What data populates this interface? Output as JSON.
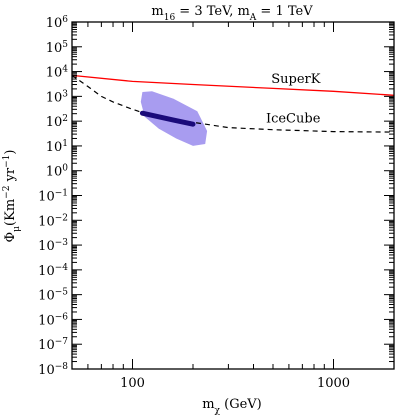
{
  "chart_data": {
    "type": "line",
    "title_parts": [
      "m",
      "16",
      " = 3 TeV,  m",
      "A",
      " = 1 TeV"
    ],
    "xlabel_parts": [
      "m",
      "χ",
      " (GeV)"
    ],
    "ylabel_parts": [
      "Φ",
      "μ",
      "(Km",
      "−2",
      " yr",
      "−1",
      ")"
    ],
    "xscale": "log",
    "yscale": "log",
    "xlim": [
      50,
      2000
    ],
    "ylim": [
      1e-08,
      1000000.0
    ],
    "x_tick_labels": [
      {
        "value": 100,
        "label": "100"
      },
      {
        "value": 1000,
        "label": "1000"
      }
    ],
    "y_tick_labels": [
      {
        "value": 1000000.0,
        "base": "10",
        "exp": "6"
      },
      {
        "value": 100000.0,
        "base": "10",
        "exp": "5"
      },
      {
        "value": 10000.0,
        "base": "10",
        "exp": "4"
      },
      {
        "value": 1000.0,
        "base": "10",
        "exp": "3"
      },
      {
        "value": 100.0,
        "base": "10",
        "exp": "2"
      },
      {
        "value": 10.0,
        "base": "10",
        "exp": "1"
      },
      {
        "value": 1.0,
        "base": "10",
        "exp": "0"
      },
      {
        "value": 0.1,
        "base": "10",
        "exp": "−1"
      },
      {
        "value": 0.01,
        "base": "10",
        "exp": "−2"
      },
      {
        "value": 0.001,
        "base": "10",
        "exp": "−3"
      },
      {
        "value": 0.0001,
        "base": "10",
        "exp": "−4"
      },
      {
        "value": 1e-05,
        "base": "10",
        "exp": "−5"
      },
      {
        "value": 1e-06,
        "base": "10",
        "exp": "−6"
      },
      {
        "value": 1e-07,
        "base": "10",
        "exp": "−7"
      },
      {
        "value": 1e-08,
        "base": "10",
        "exp": "−8"
      }
    ],
    "series": [
      {
        "name": "SuperK",
        "style": "solid",
        "color": "#ff0000",
        "x": [
          50,
          100,
          200,
          500,
          1000,
          2000
        ],
        "y": [
          7000,
          4000,
          3000,
          2100,
          1600,
          1100
        ]
      },
      {
        "name": "IceCube",
        "style": "dashed",
        "color": "#000000",
        "x": [
          50,
          60,
          70,
          80,
          100,
          130,
          200,
          300,
          500,
          1000,
          2000
        ],
        "y": [
          7000,
          2500,
          1000,
          600,
          300,
          150,
          90,
          55,
          45,
          38,
          36
        ]
      },
      {
        "style": "thick-solid",
        "color": "#1a0a7a",
        "x": [
          112,
          130,
          160,
          200
        ],
        "y": [
          210,
          160,
          110,
          75
        ]
      }
    ],
    "region": {
      "color": "#a89cf0",
      "x": [
        110,
        112,
        125,
        160,
        210,
        235,
        230,
        200,
        165,
        135,
        115
      ],
      "y": [
        600,
        1500,
        1600,
        800,
        250,
        40,
        12,
        10,
        20,
        50,
        150
      ]
    },
    "series_labels": [
      {
        "text": "SuperK",
        "x": 650,
        "y": 3500
      },
      {
        "text": "IceCube",
        "x": 630,
        "y": 90
      }
    ]
  }
}
